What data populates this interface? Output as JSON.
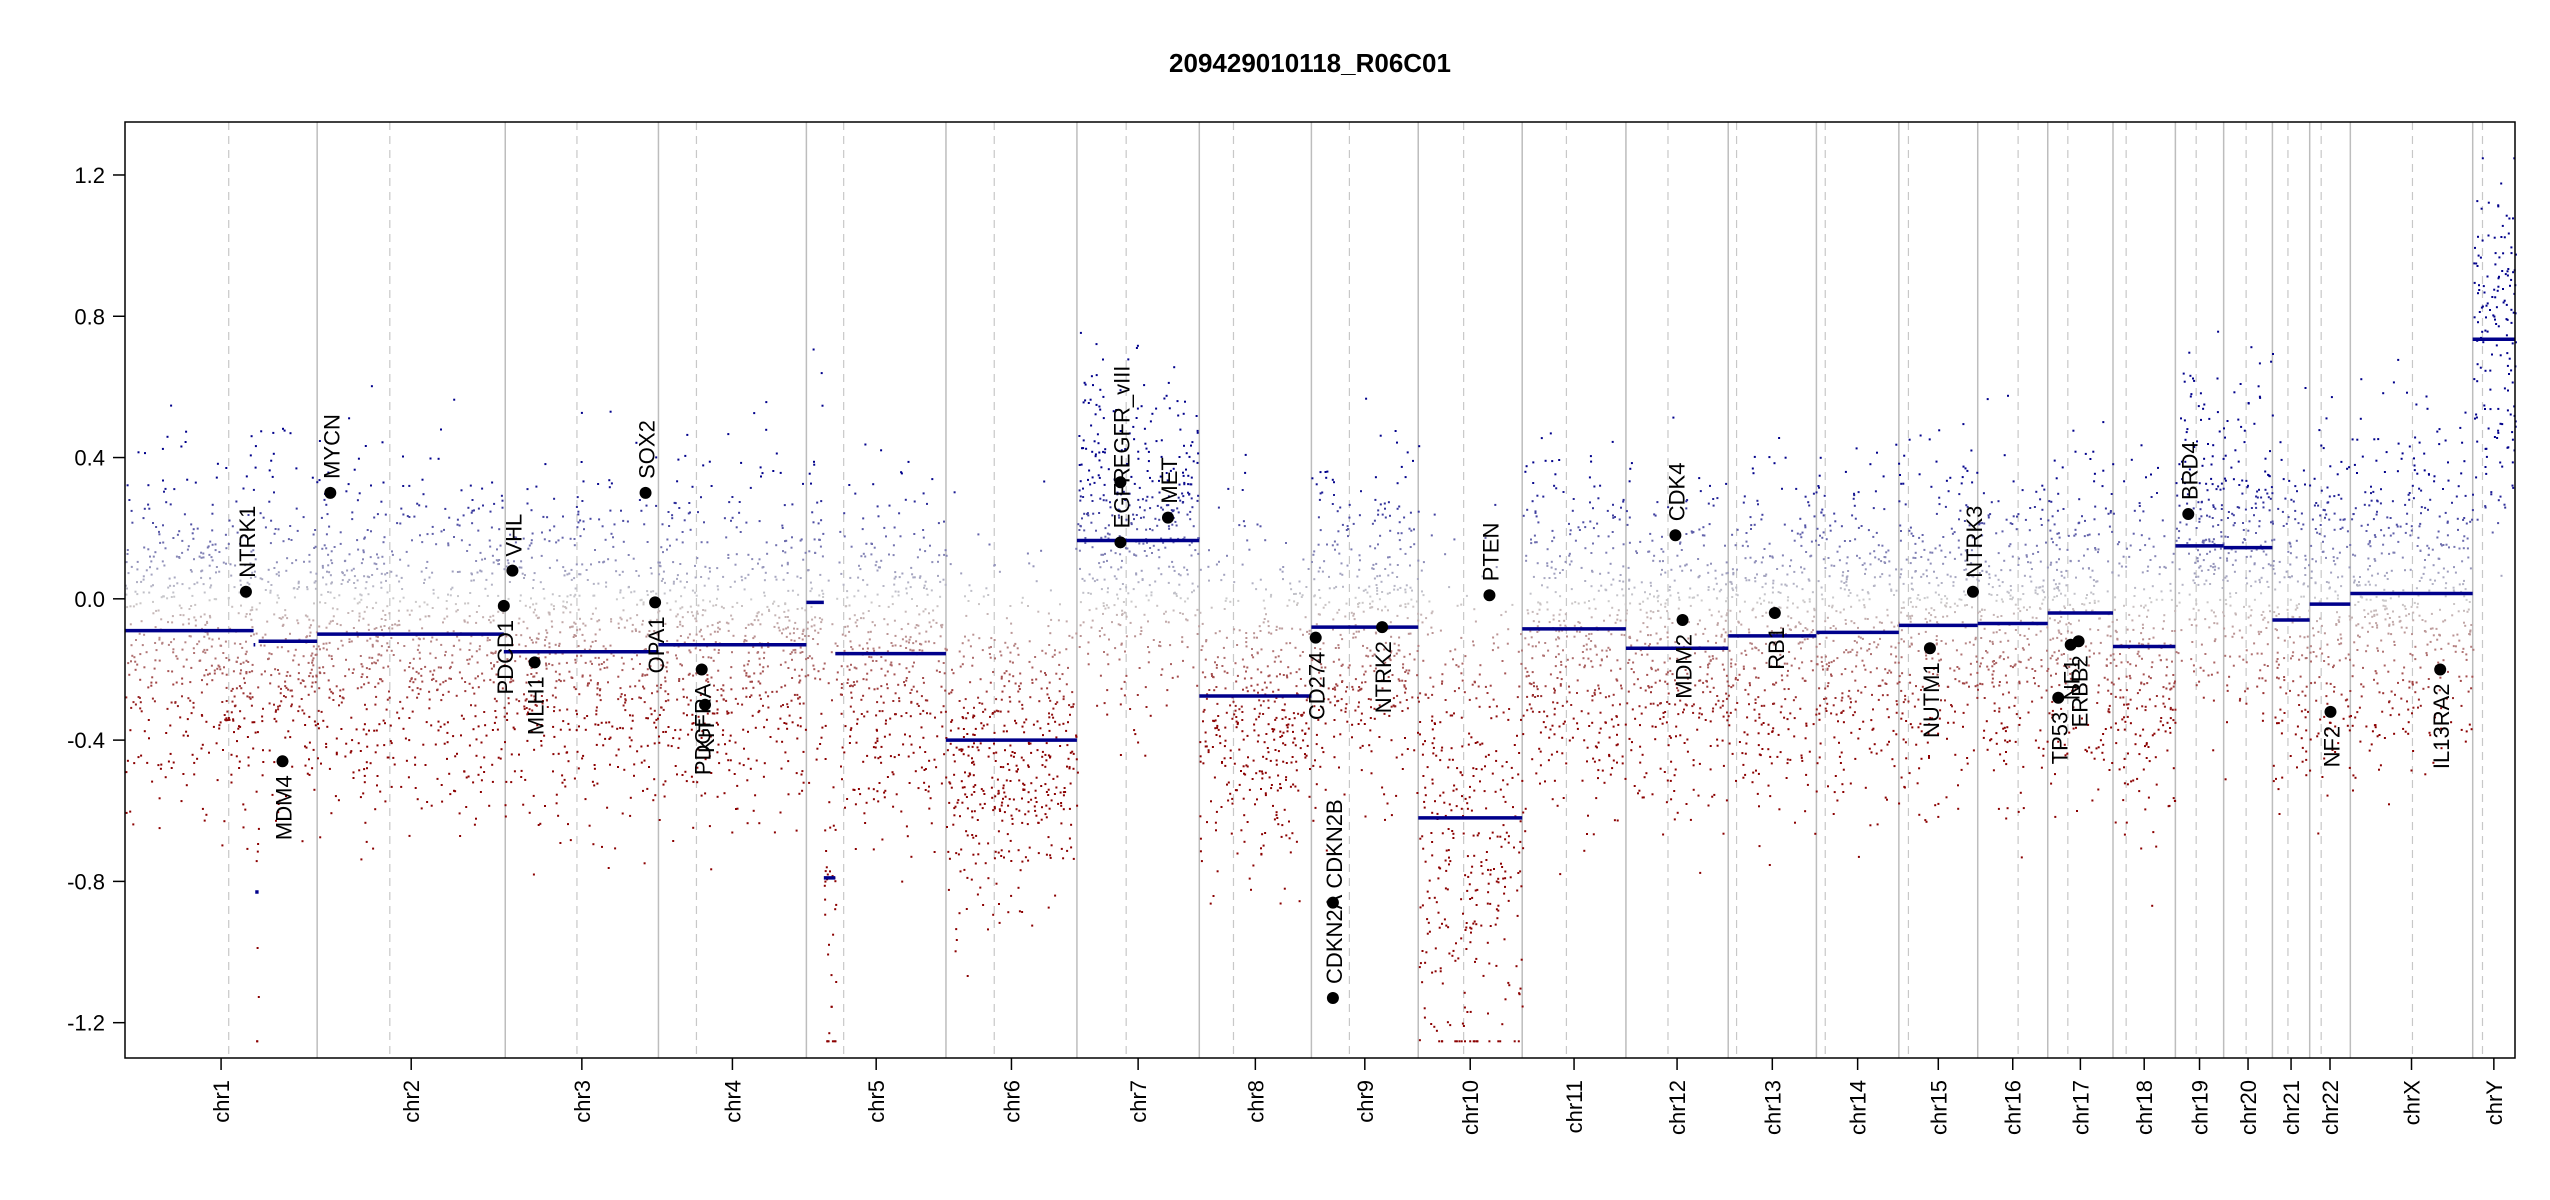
{
  "chart_data": {
    "type": "scatter",
    "title": "209429010118_R06C01",
    "xlabel": "",
    "ylabel": "",
    "ylim": [
      -1.25,
      1.25
    ],
    "y_ticks": [
      -1.2,
      -0.8,
      -0.4,
      0.0,
      0.4,
      0.8,
      1.2
    ],
    "y_tick_labels": [
      "-1.2",
      "-0.8",
      "-0.4",
      "0.0",
      "0.4",
      "0.8",
      "1.2"
    ],
    "chromosomes": [
      {
        "name": "chr1",
        "start": 0.0,
        "end": 0.0804,
        "centromere": 0.0434
      },
      {
        "name": "chr2",
        "start": 0.0804,
        "end": 0.1591,
        "centromere": 0.1108
      },
      {
        "name": "chr3",
        "start": 0.1591,
        "end": 0.2232,
        "centromere": 0.1891
      },
      {
        "name": "chr4",
        "start": 0.2232,
        "end": 0.2851,
        "centromere": 0.2391
      },
      {
        "name": "chr5",
        "start": 0.2851,
        "end": 0.3435,
        "centromere": 0.3007
      },
      {
        "name": "chr6",
        "start": 0.3435,
        "end": 0.3983,
        "centromere": 0.3637
      },
      {
        "name": "chr7",
        "start": 0.3983,
        "end": 0.4495,
        "centromere": 0.4189
      },
      {
        "name": "chr8",
        "start": 0.4495,
        "end": 0.4964,
        "centromere": 0.4638
      },
      {
        "name": "chr9",
        "start": 0.4964,
        "end": 0.5411,
        "centromere": 0.5123
      },
      {
        "name": "chr10",
        "start": 0.5411,
        "end": 0.5846,
        "centromere": 0.5601
      },
      {
        "name": "chr11",
        "start": 0.5846,
        "end": 0.628,
        "centromere": 0.6031
      },
      {
        "name": "chr12",
        "start": 0.628,
        "end": 0.6708,
        "centromere": 0.6456
      },
      {
        "name": "chr13",
        "start": 0.6708,
        "end": 0.7077,
        "centromere": 0.6743
      },
      {
        "name": "chr14",
        "start": 0.7077,
        "end": 0.7422,
        "centromere": 0.7114
      },
      {
        "name": "chr15",
        "start": 0.7422,
        "end": 0.7752,
        "centromere": 0.7462
      },
      {
        "name": "chr16",
        "start": 0.7752,
        "end": 0.8045,
        "centromere": 0.7921
      },
      {
        "name": "chr17",
        "start": 0.8045,
        "end": 0.8318,
        "centromere": 0.8129
      },
      {
        "name": "chr18",
        "start": 0.8318,
        "end": 0.8579,
        "centromere": 0.8373
      },
      {
        "name": "chr19",
        "start": 0.8579,
        "end": 0.8781,
        "centromere": 0.8666
      },
      {
        "name": "chr20",
        "start": 0.8781,
        "end": 0.8985,
        "centromere": 0.8875
      },
      {
        "name": "chr21",
        "start": 0.8985,
        "end": 0.9141,
        "centromere": 0.905
      },
      {
        "name": "chr22",
        "start": 0.9141,
        "end": 0.9311,
        "centromere": 0.9189
      },
      {
        "name": "chrX",
        "start": 0.9311,
        "end": 0.9823,
        "centromere": 0.9571
      },
      {
        "name": "chrY",
        "start": 0.9823,
        "end": 1.0,
        "centromere": 0.9864
      }
    ],
    "segments": [
      {
        "x0": 0.0,
        "x1": 0.0538,
        "y": -0.09
      },
      {
        "x0": 0.0538,
        "x1": 0.0545,
        "y": -0.13
      },
      {
        "x0": 0.0545,
        "x1": 0.0559,
        "y": -0.83
      },
      {
        "x0": 0.0559,
        "x1": 0.0804,
        "y": -0.12
      },
      {
        "x0": 0.0804,
        "x1": 0.1585,
        "y": -0.1
      },
      {
        "x0": 0.1585,
        "x1": 0.2232,
        "y": -0.15
      },
      {
        "x0": 0.2232,
        "x1": 0.2851,
        "y": -0.13
      },
      {
        "x0": 0.2851,
        "x1": 0.2924,
        "y": -0.01
      },
      {
        "x0": 0.2924,
        "x1": 0.2972,
        "y": -0.79
      },
      {
        "x0": 0.2972,
        "x1": 0.3435,
        "y": -0.155
      },
      {
        "x0": 0.3435,
        "x1": 0.3983,
        "y": -0.4
      },
      {
        "x0": 0.3983,
        "x1": 0.4495,
        "y": 0.165
      },
      {
        "x0": 0.4495,
        "x1": 0.4964,
        "y": -0.275
      },
      {
        "x0": 0.4964,
        "x1": 0.5411,
        "y": -0.08
      },
      {
        "x0": 0.5411,
        "x1": 0.5846,
        "y": -0.62
      },
      {
        "x0": 0.5846,
        "x1": 0.628,
        "y": -0.085
      },
      {
        "x0": 0.628,
        "x1": 0.6708,
        "y": -0.14
      },
      {
        "x0": 0.6708,
        "x1": 0.7077,
        "y": -0.105
      },
      {
        "x0": 0.7077,
        "x1": 0.7422,
        "y": -0.095
      },
      {
        "x0": 0.7422,
        "x1": 0.7752,
        "y": -0.075
      },
      {
        "x0": 0.7752,
        "x1": 0.8045,
        "y": -0.07
      },
      {
        "x0": 0.8045,
        "x1": 0.8318,
        "y": -0.04
      },
      {
        "x0": 0.8318,
        "x1": 0.8579,
        "y": -0.135
      },
      {
        "x0": 0.8579,
        "x1": 0.8781,
        "y": 0.15
      },
      {
        "x0": 0.8781,
        "x1": 0.8985,
        "y": 0.145
      },
      {
        "x0": 0.8985,
        "x1": 0.9141,
        "y": -0.06
      },
      {
        "x0": 0.9141,
        "x1": 0.9311,
        "y": -0.015
      },
      {
        "x0": 0.9311,
        "x1": 0.9823,
        "y": 0.015
      },
      {
        "x0": 0.9823,
        "x1": 1.0,
        "y": 0.735
      }
    ],
    "genes": [
      {
        "name": "NTRK1",
        "x": 0.0506,
        "y": 0.02,
        "label_side": "above"
      },
      {
        "name": "MDM4",
        "x": 0.0659,
        "y": -0.46,
        "label_side": "below"
      },
      {
        "name": "MYCN",
        "x": 0.0859,
        "y": 0.3,
        "label_side": "above"
      },
      {
        "name": "PDCD1",
        "x": 0.1585,
        "y": -0.02,
        "label_side": "below"
      },
      {
        "name": "VHL",
        "x": 0.1621,
        "y": 0.08,
        "label_side": "above"
      },
      {
        "name": "MLH1",
        "x": 0.1714,
        "y": -0.18,
        "label_side": "below"
      },
      {
        "name": "SOX2",
        "x": 0.2178,
        "y": 0.3,
        "label_side": "above"
      },
      {
        "name": "OPA1",
        "x": 0.2218,
        "y": -0.01,
        "label_side": "below"
      },
      {
        "name": "PDGFRA",
        "x": 0.2413,
        "y": -0.2,
        "label_side": "below"
      },
      {
        "name": "KIT",
        "x": 0.2427,
        "y": -0.3,
        "label_side": "below"
      },
      {
        "name": "EGFR",
        "x": 0.4165,
        "y": 0.16,
        "label_side": "above"
      },
      {
        "name": "EGFR_vIII",
        "x": 0.4165,
        "y": 0.33,
        "label_side": "above"
      },
      {
        "name": "MET",
        "x": 0.4364,
        "y": 0.23,
        "label_side": "above"
      },
      {
        "name": "CD274",
        "x": 0.4982,
        "y": -0.11,
        "label_side": "below"
      },
      {
        "name": "CDKN2A",
        "x": 0.5054,
        "y": -1.13,
        "label_side": "above"
      },
      {
        "name": "CDKN2B",
        "x": 0.5054,
        "y": -0.86,
        "label_side": "above"
      },
      {
        "name": "NTRK2",
        "x": 0.526,
        "y": -0.08,
        "label_side": "below"
      },
      {
        "name": "PTEN",
        "x": 0.5709,
        "y": 0.01,
        "label_side": "above"
      },
      {
        "name": "CDK4",
        "x": 0.6487,
        "y": 0.18,
        "label_side": "above"
      },
      {
        "name": "MDM2",
        "x": 0.6517,
        "y": -0.06,
        "label_side": "below"
      },
      {
        "name": "RB1",
        "x": 0.6903,
        "y": -0.04,
        "label_side": "below"
      },
      {
        "name": "NUTM1",
        "x": 0.7552,
        "y": -0.14,
        "label_side": "below"
      },
      {
        "name": "NTRK3",
        "x": 0.7732,
        "y": 0.02,
        "label_side": "above"
      },
      {
        "name": "TP53",
        "x": 0.8089,
        "y": -0.28,
        "label_side": "below"
      },
      {
        "name": "NF1",
        "x": 0.8141,
        "y": -0.13,
        "label_side": "below"
      },
      {
        "name": "ERBB2",
        "x": 0.8174,
        "y": -0.12,
        "label_side": "below"
      },
      {
        "name": "BRD4",
        "x": 0.8633,
        "y": 0.24,
        "label_side": "above"
      },
      {
        "name": "NF2",
        "x": 0.9228,
        "y": -0.32,
        "label_side": "below"
      },
      {
        "name": "IL13RA2",
        "x": 0.9687,
        "y": -0.2,
        "label_side": "below"
      }
    ],
    "point_color_high": "#00008b",
    "point_color_low": "#8b0000",
    "point_color_neutral": "#cccccc",
    "segment_color": "#00008b",
    "grid": false
  }
}
